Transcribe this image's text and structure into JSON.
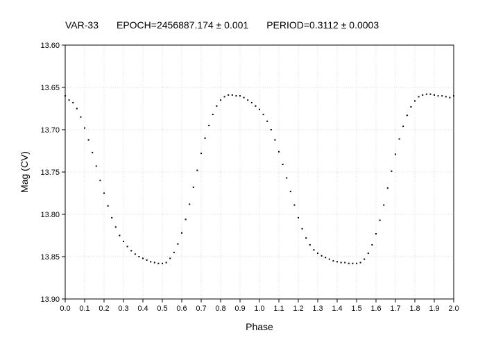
{
  "header": {
    "star": "VAR-33",
    "epoch": "EPOCH=2456887.174 ± 0.001",
    "period": "PERIOD=0.3112 ± 0.0003"
  },
  "chart_data": {
    "type": "scatter",
    "xlabel": "Phase",
    "ylabel": "Mag (CV)",
    "xlim": [
      0.0,
      2.0
    ],
    "ylim": [
      13.6,
      13.9
    ],
    "y_inverted": true,
    "grid": true,
    "x_ticks": [
      "0.0",
      "0.1",
      "0.2",
      "0.3",
      "0.4",
      "0.5",
      "0.6",
      "0.7",
      "0.8",
      "0.9",
      "1.0",
      "1.1",
      "1.2",
      "1.3",
      "1.4",
      "1.5",
      "1.6",
      "1.7",
      "1.8",
      "1.9",
      "2.0"
    ],
    "y_ticks": [
      "13.60",
      "13.65",
      "13.70",
      "13.75",
      "13.80",
      "13.85",
      "13.90"
    ],
    "marker_color": "#000000",
    "series": [
      {
        "x": [
          0.0,
          0.02,
          0.04,
          0.06,
          0.08,
          0.1,
          0.12,
          0.14,
          0.16,
          0.18,
          0.2,
          0.22,
          0.24,
          0.26,
          0.28,
          0.3,
          0.32,
          0.34,
          0.36,
          0.38,
          0.4,
          0.42,
          0.44,
          0.46,
          0.48,
          0.5,
          0.52,
          0.54,
          0.56,
          0.58,
          0.6,
          0.62,
          0.64,
          0.66,
          0.68,
          0.7,
          0.72,
          0.74,
          0.76,
          0.78,
          0.8,
          0.82,
          0.84,
          0.86,
          0.88,
          0.9,
          0.92,
          0.94,
          0.96,
          0.98,
          1.0,
          1.02,
          1.04,
          1.06,
          1.08,
          1.1,
          1.12,
          1.14,
          1.16,
          1.18,
          1.2,
          1.22,
          1.24,
          1.26,
          1.28,
          1.3,
          1.32,
          1.34,
          1.36,
          1.38,
          1.4,
          1.42,
          1.44,
          1.46,
          1.48,
          1.5,
          1.52,
          1.54,
          1.56,
          1.58,
          1.6,
          1.62,
          1.64,
          1.66,
          1.68,
          1.7,
          1.72,
          1.74,
          1.76,
          1.78,
          1.8,
          1.82,
          1.84,
          1.86,
          1.88,
          1.9,
          1.92,
          1.94,
          1.96,
          1.98,
          2.0
        ],
        "y": [
          13.66,
          13.665,
          13.668,
          13.675,
          13.685,
          13.698,
          13.712,
          13.727,
          13.743,
          13.76,
          13.775,
          13.79,
          13.804,
          13.815,
          13.825,
          13.832,
          13.838,
          13.843,
          13.847,
          13.85,
          13.852,
          13.854,
          13.856,
          13.857,
          13.858,
          13.858,
          13.857,
          13.852,
          13.845,
          13.835,
          13.822,
          13.806,
          13.788,
          13.768,
          13.748,
          13.728,
          13.71,
          13.695,
          13.682,
          13.672,
          13.665,
          13.661,
          13.659,
          13.659,
          13.66,
          13.66,
          13.662,
          13.665,
          13.668,
          13.672,
          13.676,
          13.682,
          13.69,
          13.7,
          13.712,
          13.726,
          13.741,
          13.757,
          13.773,
          13.789,
          13.804,
          13.817,
          13.828,
          13.836,
          13.842,
          13.846,
          13.849,
          13.851,
          13.853,
          13.855,
          13.856,
          13.857,
          13.857,
          13.858,
          13.858,
          13.858,
          13.857,
          13.853,
          13.846,
          13.836,
          13.823,
          13.807,
          13.789,
          13.769,
          13.749,
          13.729,
          13.711,
          13.696,
          13.683,
          13.673,
          13.666,
          13.661,
          13.659,
          13.658,
          13.658,
          13.659,
          13.66,
          13.66,
          13.661,
          13.662,
          13.66
        ]
      }
    ]
  }
}
